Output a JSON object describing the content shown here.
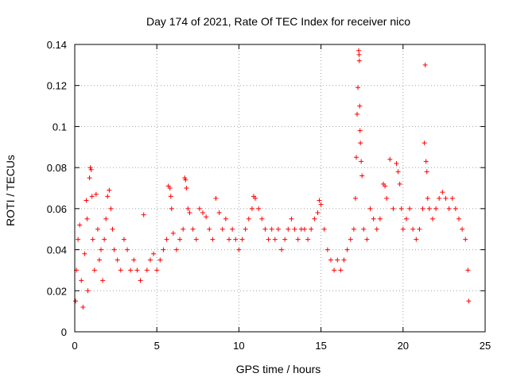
{
  "chart_data": {
    "type": "scatter",
    "title": "Day 174 of 2021, Rate Of TEC Index for receiver nico",
    "xlabel": "GPS time / hours",
    "ylabel": "ROTI / TECUs",
    "xlim": [
      0,
      25
    ],
    "ylim": [
      0,
      0.14
    ],
    "xticks": [
      0,
      5,
      10,
      15,
      20,
      25
    ],
    "xtick_labels": [
      "0",
      "5",
      "10",
      "15",
      "20",
      "25"
    ],
    "yticks": [
      0,
      0.02,
      0.04,
      0.06,
      0.08,
      0.1,
      0.12,
      0.14
    ],
    "ytick_labels": [
      "0",
      "0.02",
      "0.04",
      "0.06",
      "0.08",
      "0.1",
      "0.12",
      "0.14"
    ],
    "grid": true,
    "marker": "+",
    "color": "#ff0000",
    "series": [
      {
        "name": "ROTI",
        "points": [
          [
            0.05,
            0.015
          ],
          [
            0.1,
            0.03
          ],
          [
            0.2,
            0.045
          ],
          [
            0.3,
            0.052
          ],
          [
            0.4,
            0.025
          ],
          [
            0.5,
            0.012
          ],
          [
            0.6,
            0.038
          ],
          [
            0.7,
            0.064
          ],
          [
            0.75,
            0.055
          ],
          [
            0.8,
            0.02
          ],
          [
            0.9,
            0.075
          ],
          [
            0.95,
            0.08
          ],
          [
            1.0,
            0.079
          ],
          [
            1.05,
            0.066
          ],
          [
            1.1,
            0.045
          ],
          [
            1.2,
            0.03
          ],
          [
            1.3,
            0.067
          ],
          [
            1.4,
            0.05
          ],
          [
            1.5,
            0.035
          ],
          [
            1.6,
            0.04
          ],
          [
            1.7,
            0.025
          ],
          [
            1.8,
            0.045
          ],
          [
            1.9,
            0.055
          ],
          [
            2.0,
            0.066
          ],
          [
            2.1,
            0.069
          ],
          [
            2.2,
            0.06
          ],
          [
            2.3,
            0.05
          ],
          [
            2.4,
            0.04
          ],
          [
            2.6,
            0.035
          ],
          [
            2.8,
            0.03
          ],
          [
            3.0,
            0.045
          ],
          [
            3.2,
            0.04
          ],
          [
            3.4,
            0.03
          ],
          [
            3.6,
            0.035
          ],
          [
            3.8,
            0.03
          ],
          [
            4.0,
            0.025
          ],
          [
            4.2,
            0.057
          ],
          [
            4.4,
            0.03
          ],
          [
            4.6,
            0.035
          ],
          [
            4.8,
            0.038
          ],
          [
            5.0,
            0.03
          ],
          [
            5.2,
            0.035
          ],
          [
            5.4,
            0.04
          ],
          [
            5.6,
            0.045
          ],
          [
            5.7,
            0.071
          ],
          [
            5.8,
            0.07
          ],
          [
            5.85,
            0.066
          ],
          [
            5.9,
            0.06
          ],
          [
            6.0,
            0.048
          ],
          [
            6.2,
            0.04
          ],
          [
            6.4,
            0.045
          ],
          [
            6.6,
            0.05
          ],
          [
            6.7,
            0.075
          ],
          [
            6.75,
            0.074
          ],
          [
            6.8,
            0.07
          ],
          [
            6.9,
            0.06
          ],
          [
            7.0,
            0.058
          ],
          [
            7.2,
            0.05
          ],
          [
            7.4,
            0.045
          ],
          [
            7.6,
            0.06
          ],
          [
            7.8,
            0.058
          ],
          [
            8.0,
            0.056
          ],
          [
            8.2,
            0.05
          ],
          [
            8.4,
            0.045
          ],
          [
            8.6,
            0.065
          ],
          [
            8.8,
            0.058
          ],
          [
            9.0,
            0.05
          ],
          [
            9.2,
            0.055
          ],
          [
            9.4,
            0.045
          ],
          [
            9.6,
            0.05
          ],
          [
            9.8,
            0.045
          ],
          [
            10.0,
            0.04
          ],
          [
            10.2,
            0.045
          ],
          [
            10.4,
            0.05
          ],
          [
            10.6,
            0.055
          ],
          [
            10.8,
            0.06
          ],
          [
            10.9,
            0.066
          ],
          [
            11.0,
            0.065
          ],
          [
            11.2,
            0.06
          ],
          [
            11.4,
            0.055
          ],
          [
            11.6,
            0.05
          ],
          [
            11.8,
            0.045
          ],
          [
            12.0,
            0.05
          ],
          [
            12.2,
            0.045
          ],
          [
            12.4,
            0.05
          ],
          [
            12.6,
            0.04
          ],
          [
            12.8,
            0.045
          ],
          [
            13.0,
            0.05
          ],
          [
            13.2,
            0.055
          ],
          [
            13.4,
            0.05
          ],
          [
            13.6,
            0.045
          ],
          [
            13.8,
            0.05
          ],
          [
            14.0,
            0.05
          ],
          [
            14.2,
            0.045
          ],
          [
            14.4,
            0.05
          ],
          [
            14.6,
            0.055
          ],
          [
            14.8,
            0.058
          ],
          [
            14.9,
            0.064
          ],
          [
            15.0,
            0.062
          ],
          [
            15.2,
            0.05
          ],
          [
            15.4,
            0.04
          ],
          [
            15.6,
            0.035
          ],
          [
            15.8,
            0.03
          ],
          [
            16.0,
            0.035
          ],
          [
            16.2,
            0.03
          ],
          [
            16.4,
            0.035
          ],
          [
            16.6,
            0.04
          ],
          [
            16.8,
            0.045
          ],
          [
            17.0,
            0.05
          ],
          [
            17.1,
            0.065
          ],
          [
            17.15,
            0.085
          ],
          [
            17.2,
            0.106
          ],
          [
            17.25,
            0.119
          ],
          [
            17.3,
            0.137
          ],
          [
            17.32,
            0.135
          ],
          [
            17.34,
            0.132
          ],
          [
            17.36,
            0.11
          ],
          [
            17.38,
            0.098
          ],
          [
            17.4,
            0.092
          ],
          [
            17.45,
            0.083
          ],
          [
            17.5,
            0.076
          ],
          [
            17.6,
            0.05
          ],
          [
            17.8,
            0.045
          ],
          [
            18.0,
            0.06
          ],
          [
            18.2,
            0.055
          ],
          [
            18.4,
            0.05
          ],
          [
            18.6,
            0.055
          ],
          [
            18.8,
            0.072
          ],
          [
            18.9,
            0.071
          ],
          [
            19.0,
            0.065
          ],
          [
            19.2,
            0.084
          ],
          [
            19.4,
            0.06
          ],
          [
            19.6,
            0.082
          ],
          [
            19.7,
            0.078
          ],
          [
            19.8,
            0.072
          ],
          [
            19.9,
            0.06
          ],
          [
            20.0,
            0.05
          ],
          [
            20.2,
            0.055
          ],
          [
            20.4,
            0.06
          ],
          [
            20.6,
            0.05
          ],
          [
            20.8,
            0.045
          ],
          [
            21.0,
            0.05
          ],
          [
            21.2,
            0.06
          ],
          [
            21.3,
            0.092
          ],
          [
            21.35,
            0.13
          ],
          [
            21.4,
            0.083
          ],
          [
            21.45,
            0.078
          ],
          [
            21.5,
            0.065
          ],
          [
            21.6,
            0.06
          ],
          [
            21.8,
            0.055
          ],
          [
            22.0,
            0.06
          ],
          [
            22.2,
            0.065
          ],
          [
            22.4,
            0.068
          ],
          [
            22.6,
            0.065
          ],
          [
            22.8,
            0.06
          ],
          [
            23.0,
            0.065
          ],
          [
            23.2,
            0.06
          ],
          [
            23.4,
            0.055
          ],
          [
            23.6,
            0.05
          ],
          [
            23.8,
            0.045
          ],
          [
            23.95,
            0.03
          ],
          [
            24.0,
            0.015
          ]
        ]
      }
    ]
  }
}
